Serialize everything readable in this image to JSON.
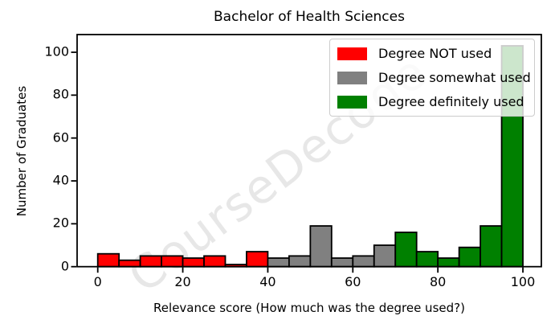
{
  "chart_data": {
    "type": "bar",
    "subtype": "histogram",
    "title": "Bachelor of Health Sciences",
    "xlabel": "Relevance score (How much was the degree used?)",
    "ylabel": "Number of Graduates",
    "x_ticks": [
      0,
      20,
      40,
      60,
      80,
      100
    ],
    "y_ticks": [
      0,
      20,
      40,
      60,
      80,
      100
    ],
    "xlim": [
      -5,
      105
    ],
    "ylim": [
      0,
      108.2
    ],
    "bin_width": 5,
    "grid": false,
    "legend_position": "upper right",
    "edge_color": "#000000",
    "background_color": "#ffffff",
    "series": [
      {
        "name": "Degree NOT used",
        "color": "#ff0000",
        "bins": [
          [
            0,
            6
          ],
          [
            5,
            3
          ],
          [
            10,
            5
          ],
          [
            15,
            5
          ],
          [
            20,
            4
          ],
          [
            25,
            5
          ],
          [
            30,
            1
          ],
          [
            35,
            7
          ]
        ]
      },
      {
        "name": "Degree somewhat used",
        "color": "#808080",
        "bins": [
          [
            40,
            4
          ],
          [
            45,
            5
          ],
          [
            50,
            19
          ],
          [
            55,
            4
          ],
          [
            60,
            5
          ],
          [
            65,
            10
          ]
        ]
      },
      {
        "name": "Degree definitely used",
        "color": "#008000",
        "bins": [
          [
            70,
            16
          ],
          [
            75,
            7
          ],
          [
            80,
            4
          ],
          [
            85,
            9
          ],
          [
            90,
            19
          ],
          [
            95,
            103
          ]
        ]
      }
    ],
    "watermark": "CourseDecode"
  }
}
